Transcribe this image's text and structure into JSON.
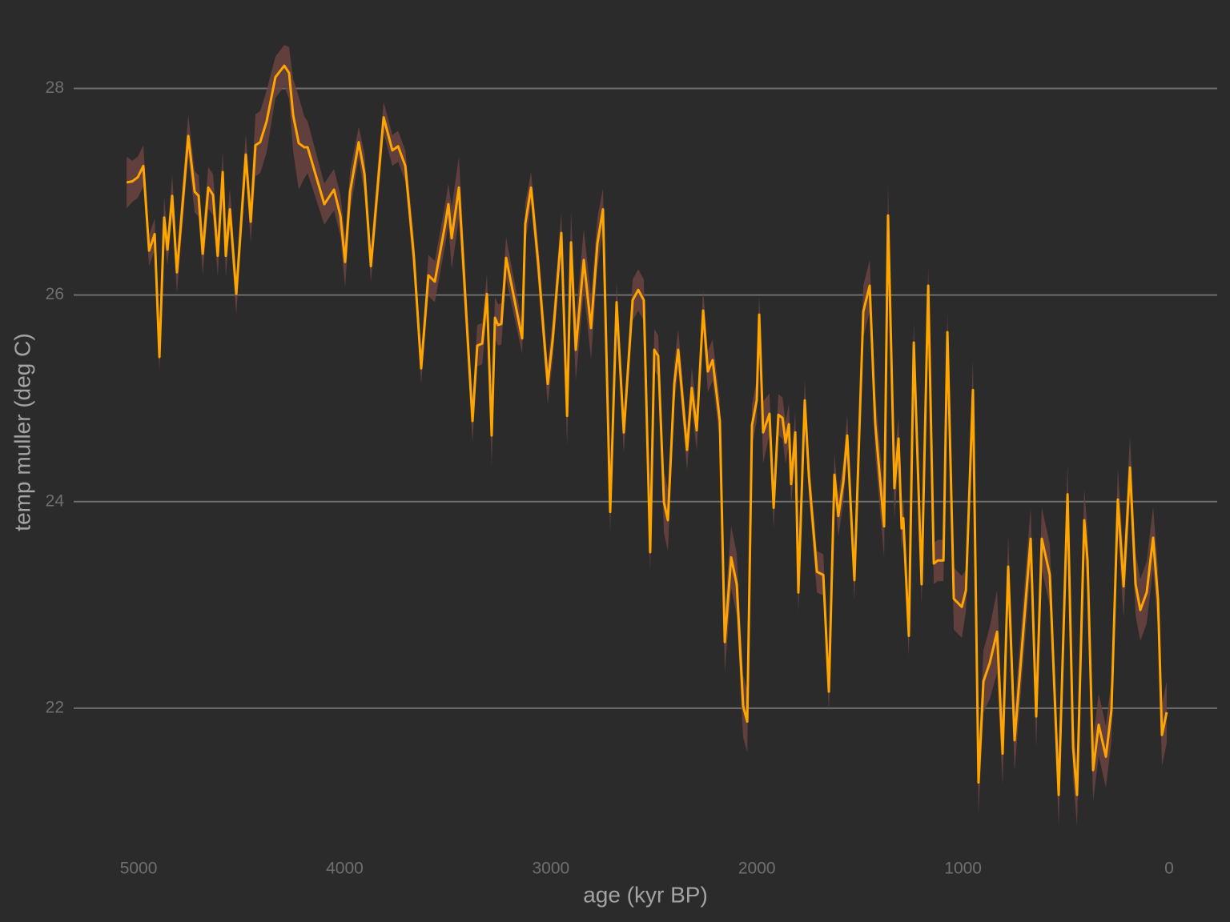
{
  "chart_data": {
    "type": "line",
    "x_label": "age (kyr BP)",
    "y_label": "temp muller (deg C)",
    "xlim": [
      5315,
      -233
    ],
    "ylim": [
      20.72,
      28.74
    ],
    "xticks": [
      5000,
      4000,
      3000,
      2000,
      1000,
      0
    ],
    "yticks": [
      22,
      24,
      26,
      28
    ],
    "grid": true,
    "color": "#ffa500",
    "band_color": "#6b4340",
    "x": [
      5058,
      5031,
      5004,
      4977,
      4949,
      4922,
      4899,
      4876,
      4860,
      4837,
      4814,
      4759,
      4728,
      4709,
      4689,
      4662,
      4639,
      4616,
      4592,
      4577,
      4557,
      4526,
      4480,
      4456,
      4433,
      4410,
      4379,
      4336,
      4293,
      4270,
      4250,
      4223,
      4196,
      4180,
      4099,
      4052,
      4021,
      3998,
      3974,
      3932,
      3904,
      3873,
      3835,
      3811,
      3769,
      3741,
      3706,
      3664,
      3629,
      3594,
      3563,
      3512,
      3497,
      3481,
      3446,
      3380,
      3357,
      3333,
      3310,
      3287,
      3271,
      3256,
      3240,
      3217,
      3139,
      3124,
      3096,
      3061,
      3015,
      2991,
      2949,
      2921,
      2902,
      2879,
      2840,
      2805,
      2774,
      2747,
      2712,
      2681,
      2646,
      2603,
      2576,
      2549,
      2518,
      2498,
      2479,
      2451,
      2432,
      2401,
      2382,
      2339,
      2316,
      2292,
      2261,
      2238,
      2215,
      2180,
      2156,
      2125,
      2098,
      2067,
      2047,
      2024,
      2001,
      1989,
      1970,
      1939,
      1919,
      1896,
      1876,
      1861,
      1845,
      1834,
      1814,
      1799,
      1768,
      1748,
      1709,
      1678,
      1651,
      1624,
      1605,
      1581,
      1562,
      1527,
      1484,
      1453,
      1426,
      1383,
      1364,
      1333,
      1313,
      1298,
      1290,
      1263,
      1239,
      1201,
      1169,
      1142,
      1123,
      1095,
      1076,
      1045,
      1006,
      986,
      952,
      925,
      901,
      870,
      835,
      808,
      781,
      750,
      672,
      645,
      618,
      579,
      536,
      493,
      466,
      447,
      412,
      396,
      369,
      342,
      307,
      280,
      249,
      221,
      190,
      163,
      140,
      109,
      78,
      54,
      35,
      12
    ],
    "values": [
      27.09,
      27.1,
      27.14,
      27.25,
      26.43,
      26.59,
      25.4,
      26.75,
      26.44,
      26.96,
      26.22,
      27.54,
      27.0,
      26.96,
      26.4,
      27.04,
      26.97,
      26.38,
      27.19,
      26.38,
      26.83,
      26.01,
      27.36,
      26.71,
      27.45,
      27.48,
      27.68,
      28.11,
      28.22,
      28.15,
      27.74,
      27.47,
      27.43,
      27.43,
      26.88,
      27.02,
      26.77,
      26.32,
      27.0,
      27.48,
      27.17,
      26.28,
      27.17,
      27.72,
      27.4,
      27.44,
      27.25,
      26.36,
      25.29,
      26.19,
      26.13,
      26.69,
      26.88,
      26.55,
      27.04,
      24.78,
      25.51,
      25.53,
      26.01,
      24.64,
      25.78,
      25.71,
      25.72,
      26.36,
      25.58,
      26.69,
      27.04,
      26.3,
      25.14,
      25.57,
      26.6,
      24.83,
      26.51,
      25.47,
      26.34,
      25.68,
      26.5,
      26.83,
      23.9,
      25.93,
      24.67,
      25.95,
      26.05,
      25.95,
      23.51,
      25.47,
      25.41,
      23.99,
      23.82,
      25.14,
      25.47,
      24.5,
      25.1,
      24.69,
      25.85,
      25.26,
      25.37,
      24.78,
      22.64,
      23.46,
      23.2,
      22.02,
      21.87,
      24.74,
      24.98,
      25.81,
      24.67,
      24.85,
      23.94,
      24.84,
      24.81,
      24.57,
      24.75,
      24.17,
      24.67,
      23.12,
      24.98,
      24.25,
      23.32,
      23.29,
      22.16,
      24.26,
      23.86,
      24.19,
      24.64,
      23.24,
      25.84,
      26.09,
      24.75,
      23.76,
      26.77,
      24.13,
      24.61,
      23.74,
      23.84,
      22.7,
      25.54,
      23.2,
      26.09,
      23.4,
      23.43,
      23.43,
      25.64,
      23.06,
      22.98,
      23.14,
      25.08,
      21.28,
      22.26,
      22.44,
      22.74,
      21.56,
      23.37,
      21.69,
      23.64,
      21.92,
      23.64,
      23.29,
      21.16,
      24.07,
      21.62,
      21.16,
      23.82,
      23.43,
      21.4,
      21.84,
      21.53,
      21.98,
      24.02,
      23.18,
      24.33,
      23.2,
      22.95,
      23.12,
      23.65,
      23.05,
      21.74,
      21.96
    ],
    "errors": [
      0.25,
      0.2,
      0.2,
      0.2,
      0.15,
      0.15,
      0.15,
      0.2,
      0.15,
      0.2,
      0.2,
      0.2,
      0.2,
      0.2,
      0.2,
      0.2,
      0.2,
      0.2,
      0.2,
      0.2,
      0.2,
      0.2,
      0.2,
      0.2,
      0.3,
      0.3,
      0.3,
      0.2,
      0.2,
      0.25,
      0.35,
      0.45,
      0.3,
      0.25,
      0.2,
      0.2,
      0.2,
      0.25,
      0.2,
      0.15,
      0.2,
      0.15,
      0.2,
      0.15,
      0.15,
      0.15,
      0.15,
      0.2,
      0.15,
      0.2,
      0.2,
      0.2,
      0.2,
      0.3,
      0.3,
      0.2,
      0.2,
      0.2,
      0.2,
      0.3,
      0.2,
      0.2,
      0.2,
      0.2,
      0.15,
      0.2,
      0.15,
      0.2,
      0.2,
      0.2,
      0.2,
      0.3,
      0.3,
      0.3,
      0.3,
      0.3,
      0.25,
      0.2,
      0.2,
      0.2,
      0.2,
      0.2,
      0.2,
      0.2,
      0.2,
      0.2,
      0.2,
      0.3,
      0.3,
      0.2,
      0.2,
      0.2,
      0.2,
      0.2,
      0.2,
      0.2,
      0.2,
      0.2,
      0.3,
      0.3,
      0.3,
      0.3,
      0.3,
      0.2,
      0.2,
      0.2,
      0.3,
      0.2,
      0.2,
      0.2,
      0.2,
      0.2,
      0.2,
      0.2,
      0.2,
      0.2,
      0.2,
      0.2,
      0.2,
      0.2,
      0.2,
      0.2,
      0.2,
      0.2,
      0.2,
      0.2,
      0.25,
      0.25,
      0.3,
      0.3,
      0.3,
      0.3,
      0.2,
      0.2,
      0.2,
      0.2,
      0.2,
      0.2,
      0.2,
      0.2,
      0.2,
      0.2,
      0.2,
      0.3,
      0.3,
      0.2,
      0.3,
      0.3,
      0.3,
      0.35,
      0.4,
      0.3,
      0.3,
      0.3,
      0.3,
      0.3,
      0.3,
      0.3,
      0.3,
      0.3,
      0.3,
      0.3,
      0.3,
      0.3,
      0.3,
      0.3,
      0.3,
      0.3,
      0.3,
      0.3,
      0.3,
      0.3,
      0.3,
      0.3,
      0.3,
      0.3,
      0.3,
      0.3
    ]
  }
}
